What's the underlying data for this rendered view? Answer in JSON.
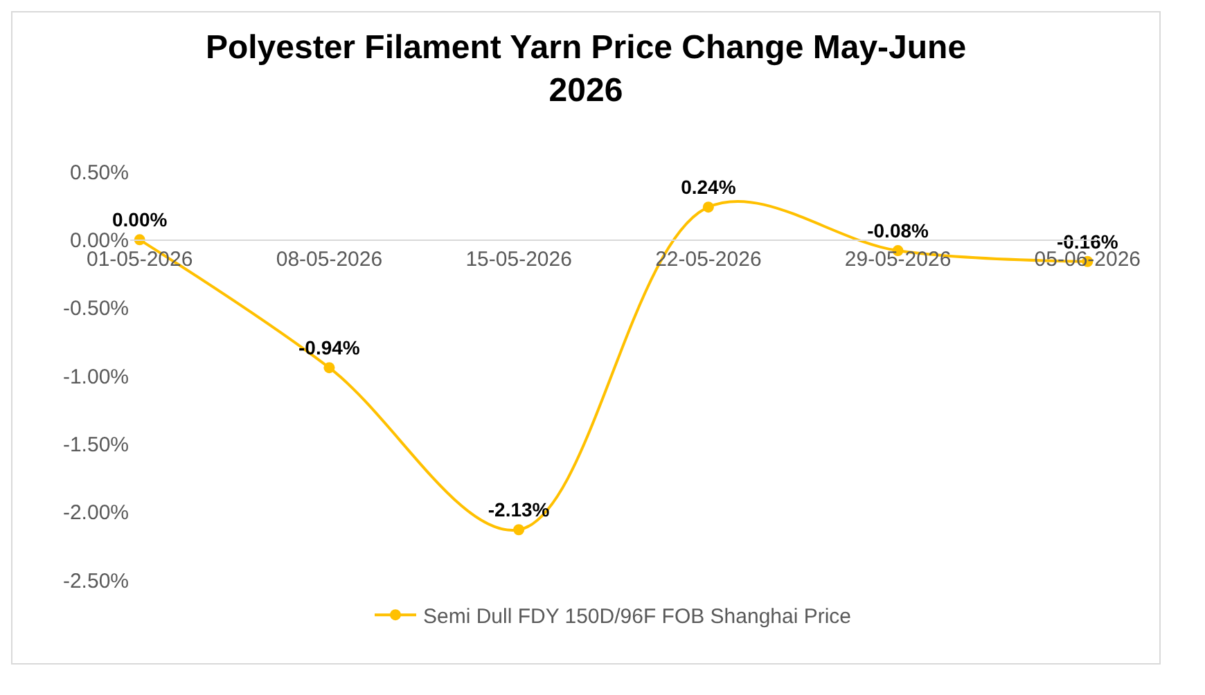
{
  "chart_data": {
    "type": "line",
    "title": "Polyester Filament Yarn Price Change May-June 2026",
    "categories": [
      "01-05-2026",
      "08-05-2026",
      "15-05-2026",
      "22-05-2026",
      "29-05-2026",
      "05-06-2026"
    ],
    "series": [
      {
        "name": "Semi Dull FDY 150D/96F FOB Shanghai Price",
        "color": "#ffc000",
        "values": [
          0,
          -0.94,
          -2.13,
          0.24,
          -0.08,
          -0.16
        ],
        "value_labels": [
          "0.00%",
          "-0.94%",
          "-2.13%",
          "0.24%",
          "-0.08%",
          "-0.16%"
        ]
      }
    ],
    "ylim": [
      -2.5,
      0.5
    ],
    "yticks": [
      {
        "value": 0.5,
        "label": "0.50%"
      },
      {
        "value": 0,
        "label": "0.00%"
      },
      {
        "value": -0.5,
        "label": "-0.50%"
      },
      {
        "value": -1,
        "label": "-1.00%"
      },
      {
        "value": -1.5,
        "label": "-1.50%"
      },
      {
        "value": -2,
        "label": "-2.00%"
      },
      {
        "value": -2.5,
        "label": "-2.50%"
      }
    ],
    "grid": false,
    "legend": "bottom",
    "marker": "circle",
    "line_style": "solid"
  }
}
